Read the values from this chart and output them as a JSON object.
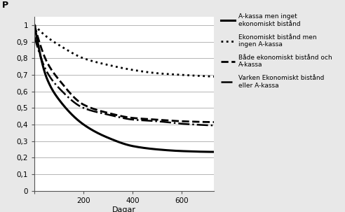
{
  "title": "",
  "xlabel": "Dagar",
  "ylabel": "P",
  "xlim": [
    0,
    730
  ],
  "ylim": [
    0,
    1.05
  ],
  "yticks": [
    0,
    0.1,
    0.2,
    0.3,
    0.4,
    0.5,
    0.6,
    0.7,
    0.8,
    0.9,
    1
  ],
  "ytick_labels": [
    "0",
    "0,1",
    "0,2",
    "0,3",
    "0,4",
    "0,5",
    "0,6",
    "0,7",
    "0,8",
    "0,9",
    "1"
  ],
  "xticks": [
    0,
    200,
    400,
    600
  ],
  "background_color": "#e8e8e8",
  "plot_bg": "#ffffff",
  "series": [
    {
      "label": "A-kassa men inget\nekonomiskt bistånd",
      "style": "solid",
      "linewidth": 2.2,
      "color": "#000000",
      "pts_t": [
        0,
        50,
        100,
        200,
        300,
        400,
        500,
        600,
        730
      ],
      "pts_y": [
        1.0,
        0.68,
        0.55,
        0.4,
        0.32,
        0.27,
        0.25,
        0.24,
        0.235
      ]
    },
    {
      "label": "Ekonomiskt bistånd men\ningen A-kassa",
      "style": "dotted",
      "linewidth": 2.0,
      "color": "#000000",
      "pts_t": [
        0,
        50,
        100,
        200,
        300,
        400,
        500,
        600,
        730
      ],
      "pts_y": [
        1.0,
        0.93,
        0.88,
        0.8,
        0.76,
        0.73,
        0.71,
        0.7,
        0.69
      ]
    },
    {
      "label": "Både ekonomiskt bistånd och\nA-kassa",
      "style": "dashed",
      "linewidth": 2.0,
      "color": "#000000",
      "pts_t": [
        0,
        50,
        100,
        200,
        300,
        400,
        500,
        600,
        730
      ],
      "pts_y": [
        1.0,
        0.78,
        0.67,
        0.52,
        0.47,
        0.44,
        0.43,
        0.42,
        0.415
      ]
    },
    {
      "label": "Varken Ekonomiskt bistånd\neller A-kassa",
      "style": "dashdot",
      "linewidth": 1.8,
      "color": "#000000",
      "pts_t": [
        0,
        50,
        100,
        200,
        300,
        400,
        500,
        600,
        730
      ],
      "pts_y": [
        0.93,
        0.72,
        0.62,
        0.5,
        0.46,
        0.43,
        0.42,
        0.405,
        0.395
      ]
    }
  ],
  "legend_fontsize": 6.5,
  "tick_fontsize": 7.5,
  "xlabel_fontsize": 8,
  "ylabel_fontsize": 9
}
